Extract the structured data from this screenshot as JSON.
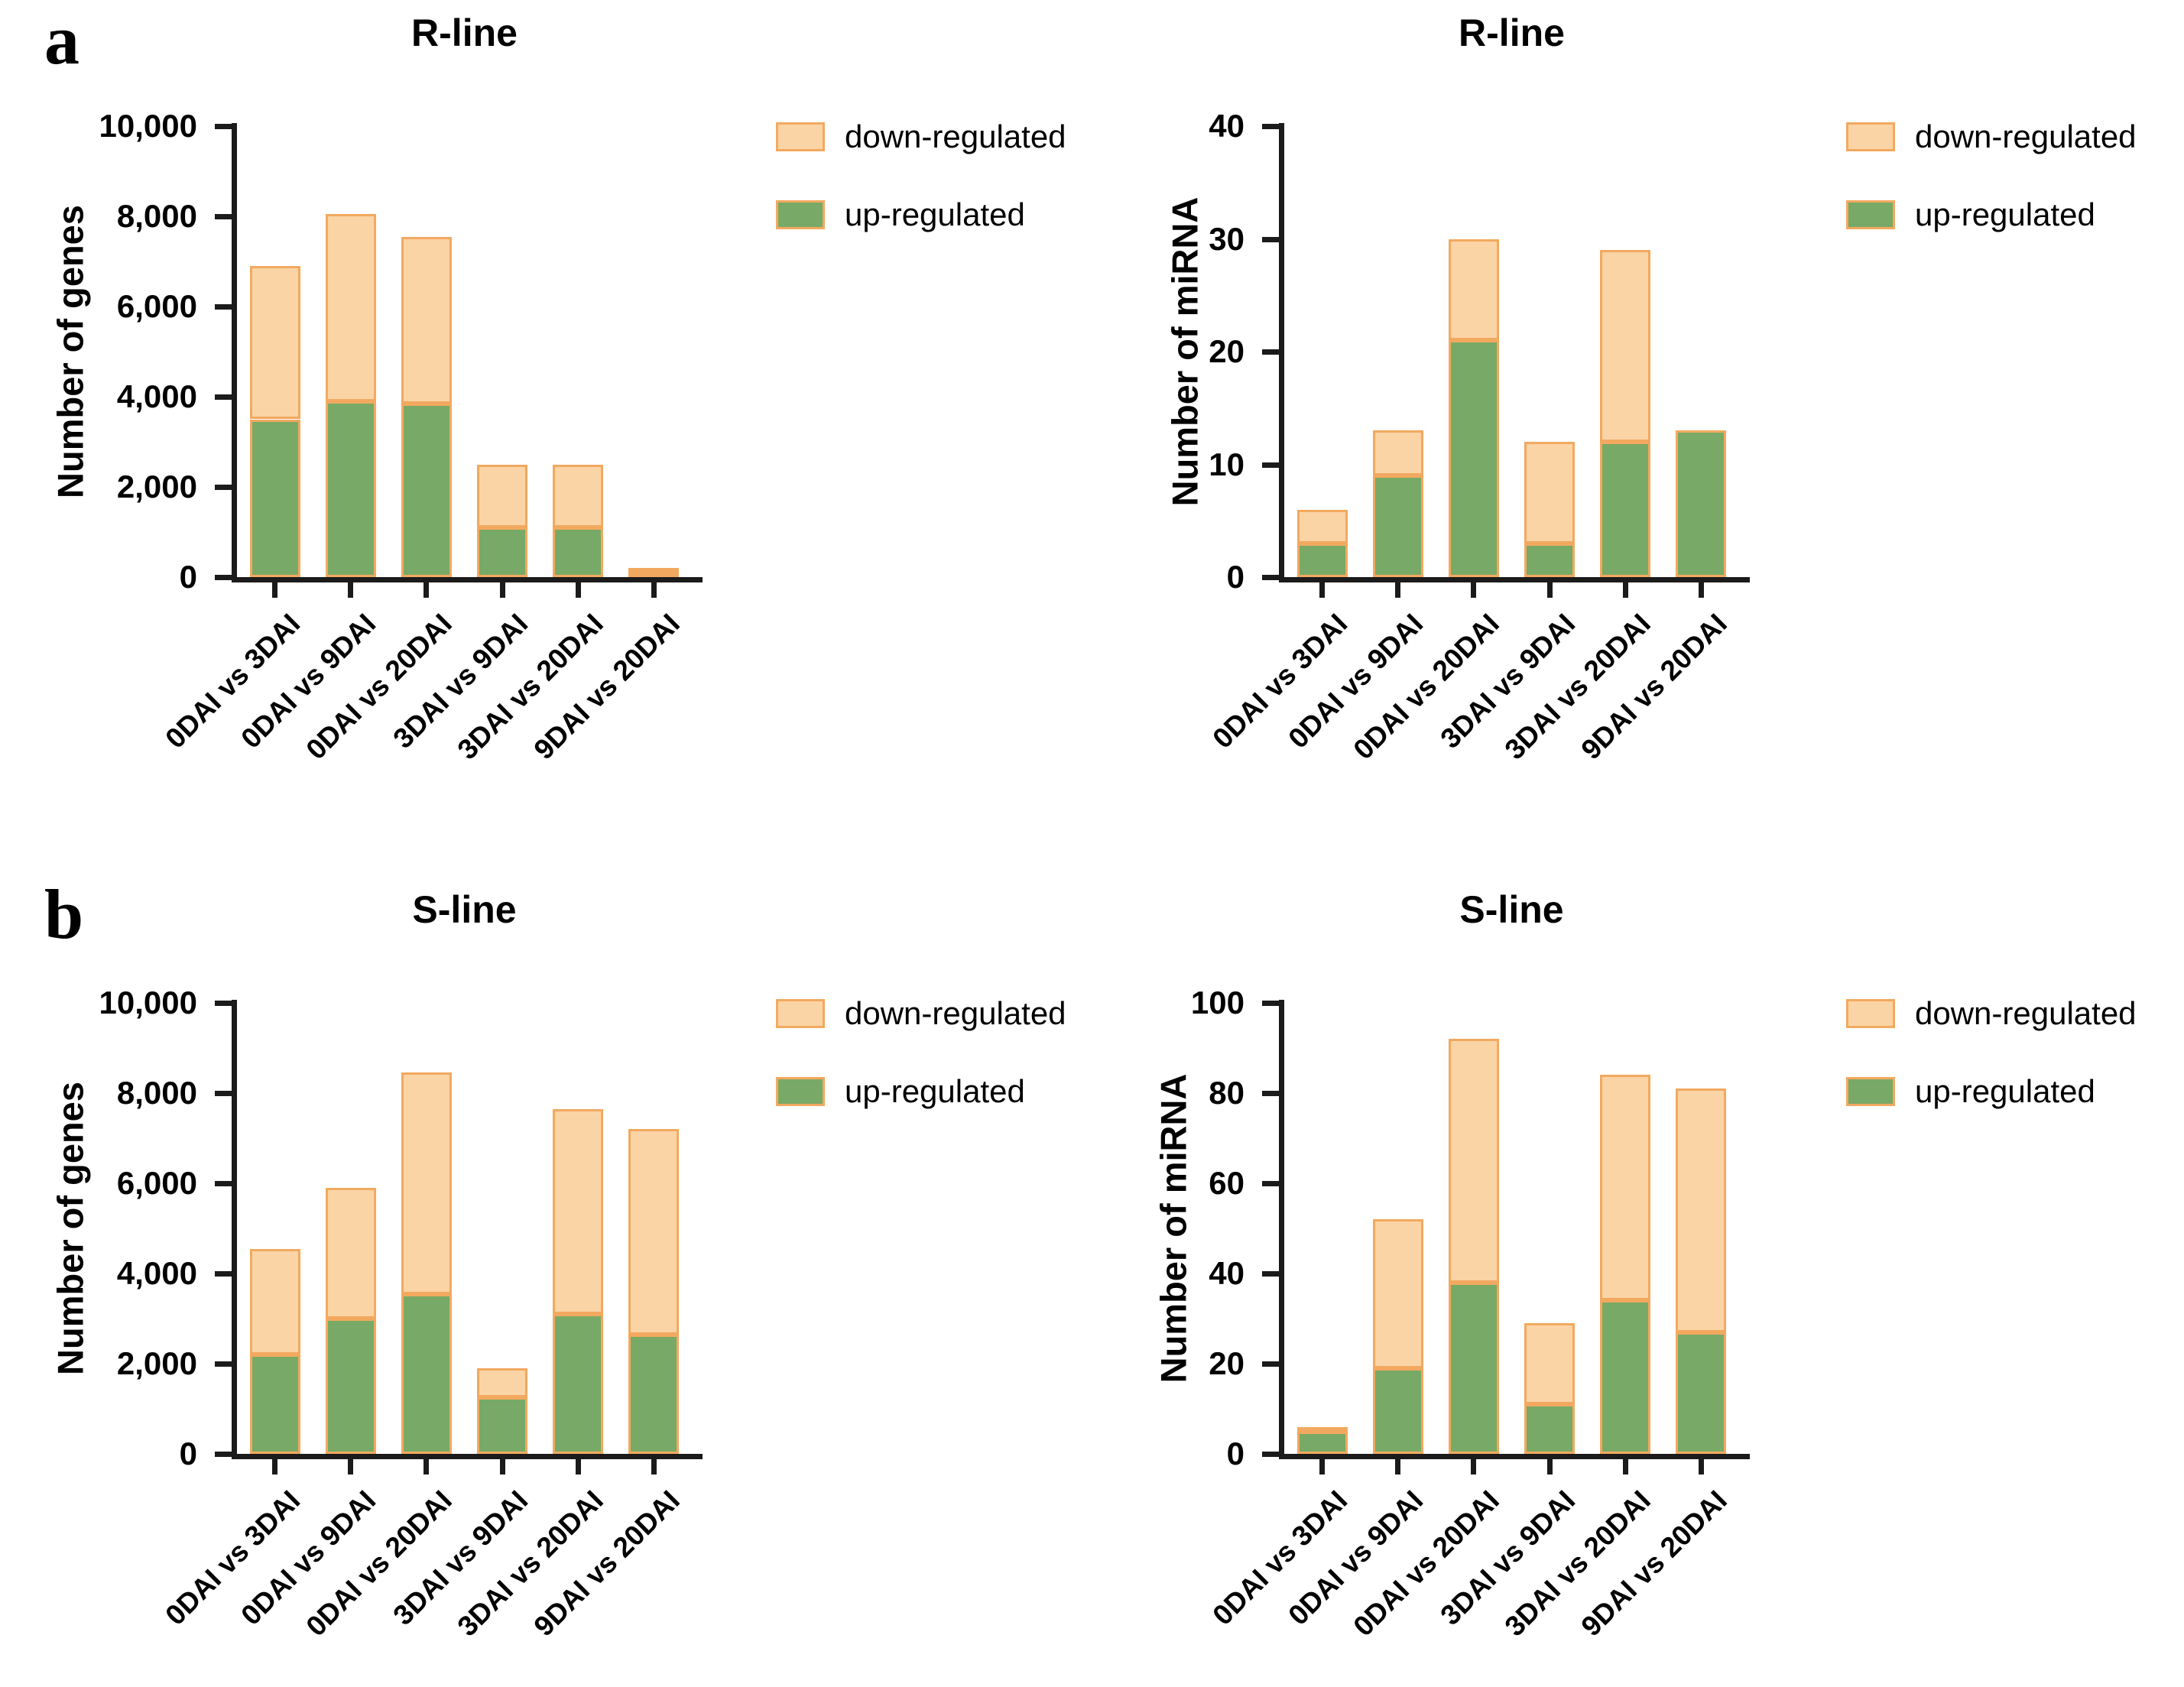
{
  "figure": {
    "panels": [
      {
        "letter": "a"
      },
      {
        "letter": "b"
      }
    ]
  },
  "colors": {
    "axis": "#1b1b1b",
    "text": "#000000",
    "up_fill": "#78A966",
    "down_fill": "#FBD4A6",
    "bar_border": "#F2A95F"
  },
  "legend": {
    "position": "right",
    "items": [
      {
        "label": "down-regulated",
        "color": "#FBD4A6",
        "border": "#F2A95F"
      },
      {
        "label": "up-regulated",
        "color": "#78A966",
        "border": "#F2A95F"
      }
    ]
  },
  "chart_data": [
    {
      "type": "bar",
      "stacked": true,
      "panel": "a",
      "title": "R-line",
      "xlabel": "",
      "ylabel": "Number of genes",
      "categories": [
        "0DAI vs 3DAI",
        "0DAI vs 9DAI",
        "0DAI vs 20DAI",
        "3DAI vs 9DAI",
        "3DAI vs 20DAI",
        "9DAI vs 20DAI"
      ],
      "series": [
        {
          "name": "up-regulated",
          "color": "#78A966",
          "values": [
            3500,
            3900,
            3850,
            1100,
            1100,
            100
          ]
        },
        {
          "name": "down-regulated",
          "color": "#FBD4A6",
          "values": [
            3400,
            4150,
            3700,
            1400,
            1400,
            100
          ]
        }
      ],
      "totals": [
        6900,
        8050,
        7550,
        2500,
        2500,
        200
      ],
      "ylim": [
        0,
        10000
      ],
      "yticks": [
        0,
        2000,
        4000,
        6000,
        8000,
        10000
      ],
      "ytick_labels": [
        "0",
        "2,000",
        "4,000",
        "6,000",
        "8,000",
        "10,000"
      ],
      "grid": false,
      "legend_position": "right"
    },
    {
      "type": "bar",
      "stacked": true,
      "panel": "a",
      "title": "R-line",
      "xlabel": "",
      "ylabel": "Number of miRNA",
      "categories": [
        "0DAI vs 3DAI",
        "0DAI vs 9DAI",
        "0DAI vs 20DAI",
        "3DAI vs 9DAI",
        "3DAI vs 20DAI",
        "9DAI vs 20DAI"
      ],
      "series": [
        {
          "name": "up-regulated",
          "color": "#78A966",
          "values": [
            3,
            9,
            21,
            3,
            12,
            13
          ]
        },
        {
          "name": "down-regulated",
          "color": "#FBD4A6",
          "values": [
            3,
            4,
            9,
            9,
            17,
            0
          ]
        }
      ],
      "totals": [
        6,
        13,
        30,
        12,
        29,
        13
      ],
      "ylim": [
        0,
        40
      ],
      "yticks": [
        0,
        10,
        20,
        30,
        40
      ],
      "ytick_labels": [
        "0",
        "10",
        "20",
        "30",
        "40"
      ],
      "grid": false,
      "legend_position": "right"
    },
    {
      "type": "bar",
      "stacked": true,
      "panel": "b",
      "title": "S-line",
      "xlabel": "",
      "ylabel": "Number of genes",
      "categories": [
        "0DAI vs 3DAI",
        "0DAI vs 9DAI",
        "0DAI vs 20DAI",
        "3DAI vs 9DAI",
        "3DAI vs 20DAI",
        "9DAI vs 20DAI"
      ],
      "series": [
        {
          "name": "up-regulated",
          "color": "#78A966",
          "values": [
            2200,
            3000,
            3550,
            1250,
            3100,
            2650
          ]
        },
        {
          "name": "down-regulated",
          "color": "#FBD4A6",
          "values": [
            2350,
            2900,
            4900,
            650,
            4550,
            4550
          ]
        }
      ],
      "totals": [
        4550,
        5900,
        8450,
        1900,
        7650,
        7200
      ],
      "ylim": [
        0,
        10000
      ],
      "yticks": [
        0,
        2000,
        4000,
        6000,
        8000,
        10000
      ],
      "ytick_labels": [
        "0",
        "2,000",
        "4,000",
        "6,000",
        "8,000",
        "10,000"
      ],
      "grid": false,
      "legend_position": "right"
    },
    {
      "type": "bar",
      "stacked": true,
      "panel": "b",
      "title": "S-line",
      "xlabel": "",
      "ylabel": "Number of miRNA",
      "categories": [
        "0DAI vs 3DAI",
        "0DAI vs 9DAI",
        "0DAI vs 20DAI",
        "3DAI vs 9DAI",
        "3DAI vs 20DAI",
        "9DAI vs 20DAI"
      ],
      "series": [
        {
          "name": "up-regulated",
          "color": "#78A966",
          "values": [
            5,
            19,
            38,
            11,
            34,
            27
          ]
        },
        {
          "name": "down-regulated",
          "color": "#FBD4A6",
          "values": [
            1,
            33,
            54,
            18,
            50,
            54
          ]
        }
      ],
      "totals": [
        6,
        52,
        92,
        29,
        84,
        81
      ],
      "ylim": [
        0,
        100
      ],
      "yticks": [
        0,
        20,
        40,
        60,
        80,
        100
      ],
      "ytick_labels": [
        "0",
        "20",
        "40",
        "60",
        "80",
        "100"
      ],
      "grid": false,
      "legend_position": "right"
    }
  ]
}
